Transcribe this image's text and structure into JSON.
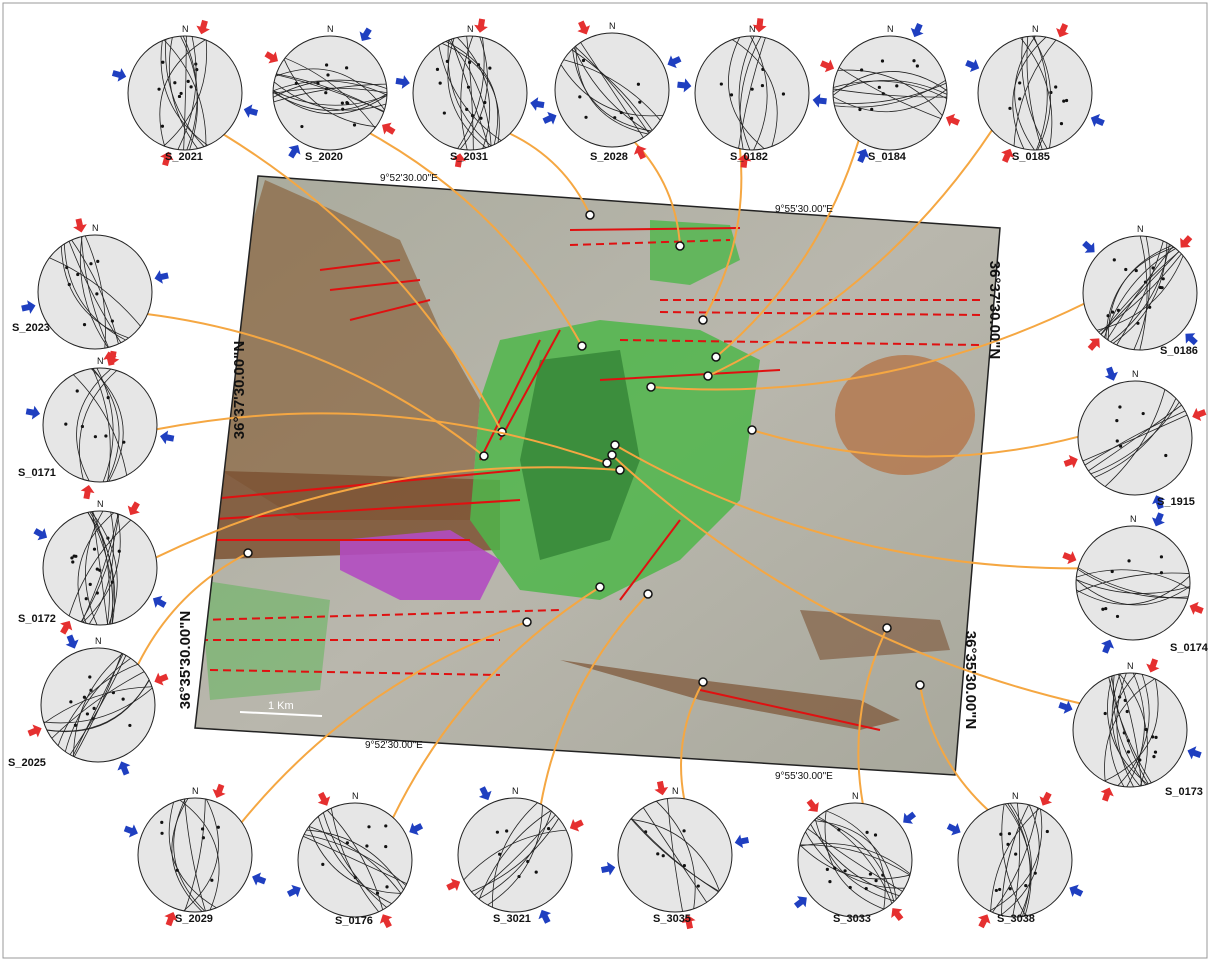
{
  "figure": {
    "north_label": "N",
    "scale_label": "1 Km",
    "lon_labels": [
      "9°52'30.00\"E",
      "9°55'30.00\"E"
    ],
    "lat_labels": [
      "36°37'30.00\"N",
      "36°35'30.00\"N"
    ],
    "stations": [
      "S_2021",
      "S_2020",
      "S_2031",
      "S_2028",
      "S_0182",
      "S_0184",
      "S_0185",
      "S_2023",
      "S_0171",
      "S_0172",
      "S_2025",
      "S_2029",
      "S_0176",
      "S_3021",
      "S_3035",
      "S_3033",
      "S_3038",
      "S_0186",
      "S_1915",
      "S_0174",
      "S_0173"
    ]
  }
}
